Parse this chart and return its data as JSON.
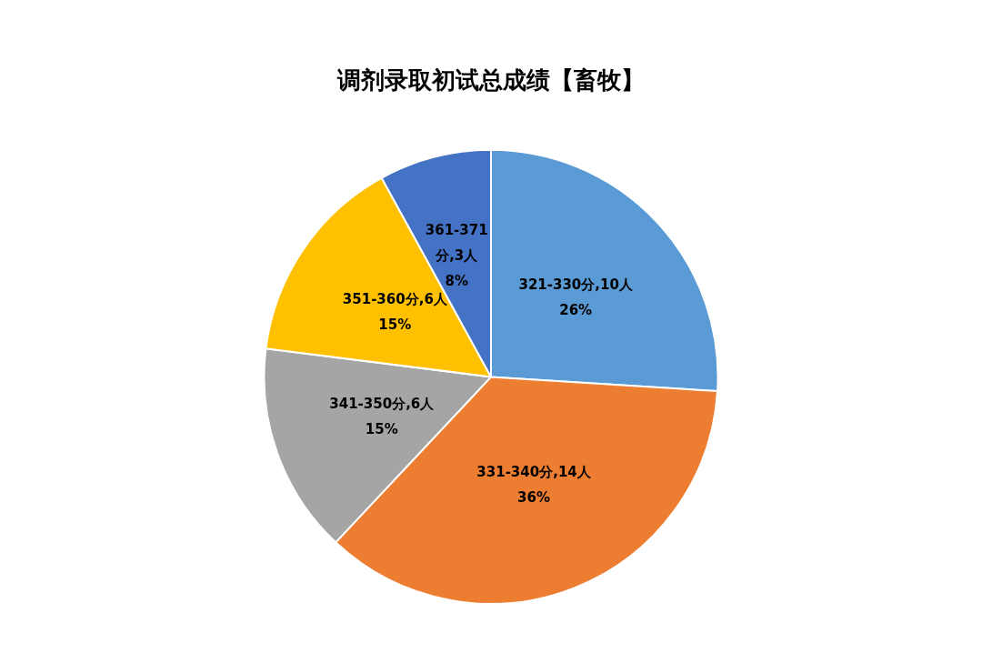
{
  "chart_data": {
    "type": "pie",
    "title": "调剂录取初试总成绩【畜牧】",
    "categories": [
      "321-330分,10人",
      "331-340分,14人",
      "341-350分,6人",
      "351-360分,6人",
      "361-371分,3人"
    ],
    "values": [
      26,
      36,
      15,
      15,
      8
    ],
    "colors": [
      "#5b9bd5",
      "#ed7d31",
      "#a5a5a5",
      "#ffc000",
      "#4472c4"
    ],
    "value_labels": [
      "26%",
      "36%",
      "15%",
      "15%",
      "8%"
    ],
    "legend": false
  }
}
